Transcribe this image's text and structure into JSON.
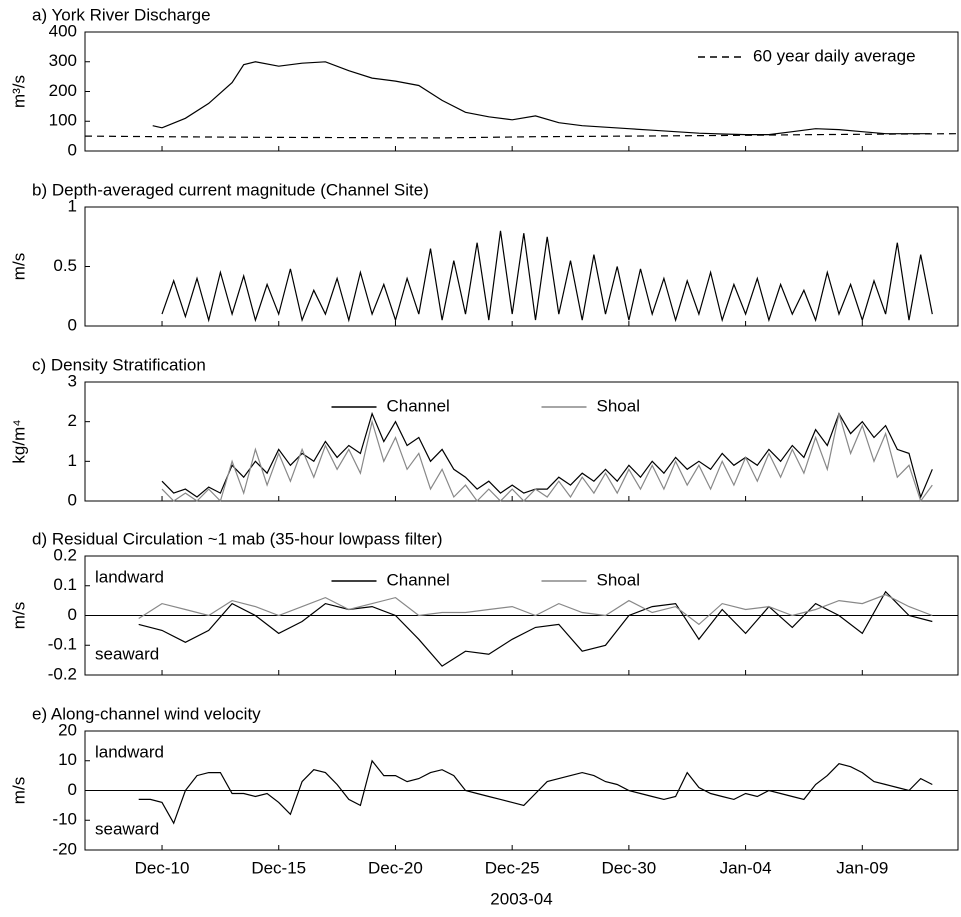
{
  "chart_data": [
    {
      "type": "line",
      "title": "a) York River Discharge",
      "ylabel": "m³/s",
      "xlim": [
        6.7,
        44.1
      ],
      "ylim": [
        0,
        400
      ],
      "yticks": [
        0,
        100,
        200,
        300,
        400
      ],
      "legend": "upper right",
      "series": [
        {
          "name": null,
          "color": "#000000",
          "x": [
            9.6,
            10,
            11,
            12,
            13,
            13.5,
            14,
            15,
            16,
            17,
            18,
            19,
            20,
            21,
            22,
            23,
            24,
            25,
            26,
            27,
            28,
            29,
            30,
            31,
            32,
            33,
            34,
            35,
            36,
            37,
            38,
            39,
            40,
            41,
            42,
            42.9
          ],
          "values": [
            85,
            78,
            110,
            160,
            230,
            290,
            300,
            285,
            295,
            300,
            270,
            245,
            235,
            220,
            170,
            130,
            115,
            105,
            118,
            95,
            85,
            80,
            75,
            70,
            65,
            60,
            57,
            55,
            55,
            65,
            75,
            72,
            65,
            58,
            58,
            58
          ]
        },
        {
          "name": "60 year daily average",
          "color": "#000000",
          "dash": true,
          "x": [
            6.7,
            10,
            14,
            18,
            22,
            26,
            30,
            34,
            38,
            42,
            44.1
          ],
          "values": [
            50,
            48,
            46,
            45,
            44,
            48,
            50,
            52,
            55,
            57,
            58
          ]
        }
      ]
    },
    {
      "type": "line",
      "title": "b) Depth-averaged current magnitude (Channel Site)",
      "ylabel": "m/s",
      "xlim": [
        6.7,
        44.1
      ],
      "ylim": [
        0,
        1
      ],
      "yticks": [
        0,
        0.5,
        1
      ],
      "series": [
        {
          "name": null,
          "color": "#000000",
          "x": [
            10,
            10.5,
            11,
            11.5,
            12,
            12.5,
            13,
            13.5,
            14,
            14.5,
            15,
            15.5,
            16,
            16.5,
            17,
            17.5,
            18,
            18.5,
            19,
            19.5,
            20,
            20.5,
            21,
            21.5,
            22,
            22.5,
            23,
            23.5,
            24,
            24.5,
            25,
            25.5,
            26,
            26.5,
            27,
            27.5,
            28,
            28.5,
            29,
            29.5,
            30,
            30.5,
            31,
            31.5,
            32,
            32.5,
            33,
            33.5,
            34,
            34.5,
            35,
            35.5,
            36,
            36.5,
            37,
            37.5,
            38,
            38.5,
            39,
            39.5,
            40,
            40.5,
            41,
            41.5,
            42,
            42.5,
            43
          ],
          "values": [
            0.1,
            0.38,
            0.08,
            0.4,
            0.05,
            0.45,
            0.1,
            0.42,
            0.05,
            0.35,
            0.1,
            0.48,
            0.05,
            0.3,
            0.1,
            0.4,
            0.05,
            0.45,
            0.1,
            0.35,
            0.05,
            0.4,
            0.1,
            0.65,
            0.05,
            0.55,
            0.1,
            0.7,
            0.05,
            0.8,
            0.1,
            0.78,
            0.05,
            0.75,
            0.1,
            0.55,
            0.05,
            0.6,
            0.1,
            0.5,
            0.05,
            0.48,
            0.1,
            0.4,
            0.05,
            0.38,
            0.1,
            0.45,
            0.05,
            0.35,
            0.1,
            0.4,
            0.05,
            0.35,
            0.1,
            0.3,
            0.05,
            0.45,
            0.1,
            0.35,
            0.05,
            0.38,
            0.1,
            0.7,
            0.05,
            0.6,
            0.1
          ]
        }
      ]
    },
    {
      "type": "line",
      "title": "c) Density Stratification",
      "ylabel": "kg/m⁴",
      "xlim": [
        6.7,
        44.1
      ],
      "ylim": [
        0,
        3
      ],
      "yticks": [
        0,
        1,
        2,
        3
      ],
      "legend": "upper center",
      "series": [
        {
          "name": "Channel",
          "color": "#000000",
          "x": [
            10,
            10.5,
            11,
            11.5,
            12,
            12.5,
            13,
            13.5,
            14,
            14.5,
            15,
            15.5,
            16,
            16.5,
            17,
            17.5,
            18,
            18.5,
            19,
            19.5,
            20,
            20.5,
            21,
            21.5,
            22,
            22.5,
            23,
            23.5,
            24,
            24.5,
            25,
            25.5,
            26,
            26.5,
            27,
            27.5,
            28,
            28.5,
            29,
            29.5,
            30,
            30.5,
            31,
            31.5,
            32,
            32.5,
            33,
            33.5,
            34,
            34.5,
            35,
            35.5,
            36,
            36.5,
            37,
            37.5,
            38,
            38.5,
            39,
            39.5,
            40,
            40.5,
            41,
            41.5,
            42,
            42.5,
            43
          ],
          "values": [
            0.5,
            0.2,
            0.3,
            0.1,
            0.35,
            0.2,
            0.9,
            0.6,
            1.0,
            0.7,
            1.3,
            0.9,
            1.2,
            1.0,
            1.5,
            1.1,
            1.4,
            1.2,
            2.2,
            1.5,
            2.0,
            1.4,
            1.6,
            1.0,
            1.3,
            0.8,
            0.6,
            0.3,
            0.5,
            0.2,
            0.4,
            0.2,
            0.3,
            0.3,
            0.6,
            0.4,
            0.7,
            0.5,
            0.8,
            0.5,
            0.9,
            0.6,
            1.0,
            0.7,
            1.1,
            0.8,
            1.0,
            0.8,
            1.2,
            0.9,
            1.1,
            0.9,
            1.3,
            1.0,
            1.4,
            1.1,
            1.8,
            1.4,
            2.2,
            1.7,
            2.0,
            1.6,
            1.9,
            1.3,
            1.2,
            0.1,
            0.8
          ]
        },
        {
          "name": "Shoal",
          "color": "#888888",
          "x": [
            10,
            10.5,
            11,
            11.5,
            12,
            12.5,
            13,
            13.5,
            14,
            14.5,
            15,
            15.5,
            16,
            16.5,
            17,
            17.5,
            18,
            18.5,
            19,
            19.5,
            20,
            20.5,
            21,
            21.5,
            22,
            22.5,
            23,
            23.5,
            24,
            24.5,
            25,
            25.5,
            26,
            26.5,
            27,
            27.5,
            28,
            28.5,
            29,
            29.5,
            30,
            30.5,
            31,
            31.5,
            32,
            32.5,
            33,
            33.5,
            34,
            34.5,
            35,
            35.5,
            36,
            36.5,
            37,
            37.5,
            38,
            38.5,
            39,
            39.5,
            40,
            40.5,
            41,
            41.5,
            42,
            42.5,
            43
          ],
          "values": [
            0.3,
            0.0,
            0.2,
            0.0,
            0.3,
            0.0,
            1.0,
            0.2,
            1.3,
            0.4,
            1.2,
            0.5,
            1.3,
            0.6,
            1.4,
            0.8,
            1.3,
            0.7,
            2.0,
            1.0,
            1.6,
            0.8,
            1.2,
            0.3,
            0.8,
            0.1,
            0.4,
            0.0,
            0.3,
            0.0,
            0.3,
            0.0,
            0.3,
            0.1,
            0.5,
            0.1,
            0.6,
            0.2,
            0.7,
            0.2,
            0.8,
            0.3,
            0.9,
            0.3,
            1.0,
            0.4,
            0.9,
            0.3,
            1.0,
            0.4,
            1.1,
            0.5,
            1.2,
            0.6,
            1.3,
            0.7,
            1.6,
            0.8,
            2.2,
            1.2,
            1.9,
            1.0,
            1.7,
            0.6,
            0.9,
            0.0,
            0.4
          ]
        }
      ]
    },
    {
      "type": "line",
      "title": "d) Residual Circulation ~1 mab (35-hour lowpass filter)",
      "ylabel": "m/s",
      "xlim": [
        6.7,
        44.1
      ],
      "ylim": [
        -0.2,
        0.2
      ],
      "yticks": [
        -0.2,
        -0.1,
        0,
        0.1,
        0.2
      ],
      "zero_line": true,
      "legend": "upper center",
      "annotations": [
        "landward",
        "seaward"
      ],
      "series": [
        {
          "name": "Channel",
          "color": "#000000",
          "x": [
            9,
            10,
            11,
            12,
            13,
            14,
            15,
            16,
            17,
            18,
            19,
            20,
            21,
            22,
            23,
            24,
            25,
            26,
            27,
            28,
            29,
            30,
            31,
            32,
            33,
            34,
            35,
            36,
            37,
            38,
            39,
            40,
            41,
            42,
            43
          ],
          "values": [
            -0.03,
            -0.05,
            -0.09,
            -0.05,
            0.04,
            0.0,
            -0.06,
            -0.02,
            0.04,
            0.02,
            0.03,
            0.0,
            -0.08,
            -0.17,
            -0.12,
            -0.13,
            -0.08,
            -0.04,
            -0.03,
            -0.12,
            -0.1,
            0.0,
            0.03,
            0.04,
            -0.08,
            0.02,
            -0.06,
            0.03,
            -0.04,
            0.04,
            0.0,
            -0.06,
            0.08,
            0.0,
            -0.02
          ]
        },
        {
          "name": "Shoal",
          "color": "#888888",
          "x": [
            9,
            10,
            11,
            12,
            13,
            14,
            15,
            16,
            17,
            18,
            19,
            20,
            21,
            22,
            23,
            24,
            25,
            26,
            27,
            28,
            29,
            30,
            31,
            32,
            33,
            34,
            35,
            36,
            37,
            38,
            39,
            40,
            41,
            42,
            43
          ],
          "values": [
            -0.01,
            0.04,
            0.02,
            0.0,
            0.05,
            0.03,
            0.0,
            0.03,
            0.06,
            0.02,
            0.04,
            0.06,
            0.0,
            0.01,
            0.01,
            0.02,
            0.03,
            0.0,
            0.04,
            0.01,
            0.0,
            0.05,
            0.01,
            0.03,
            -0.03,
            0.04,
            0.02,
            0.03,
            0.0,
            0.02,
            0.05,
            0.04,
            0.07,
            0.03,
            0.0
          ]
        }
      ]
    },
    {
      "type": "line",
      "title": "e) Along-channel wind velocity",
      "ylabel": "m/s",
      "xlabel": "2003-04",
      "xlim": [
        6.7,
        44.1
      ],
      "ylim": [
        -20,
        20
      ],
      "yticks": [
        -20,
        -10,
        0,
        10,
        20
      ],
      "zero_line": true,
      "annotations": [
        "landward",
        "seaward"
      ],
      "xticks": [
        {
          "value": 10,
          "label": "Dec-10"
        },
        {
          "value": 15,
          "label": "Dec-15"
        },
        {
          "value": 20,
          "label": "Dec-20"
        },
        {
          "value": 25,
          "label": "Dec-25"
        },
        {
          "value": 30,
          "label": "Dec-30"
        },
        {
          "value": 35,
          "label": "Jan-04"
        },
        {
          "value": 40,
          "label": "Jan-09"
        }
      ],
      "series": [
        {
          "name": null,
          "color": "#000000",
          "x": [
            9,
            9.5,
            10,
            10.5,
            11,
            11.5,
            12,
            12.5,
            13,
            13.5,
            14,
            14.5,
            15,
            15.5,
            16,
            16.5,
            17,
            17.5,
            18,
            18.5,
            19,
            19.5,
            20,
            20.5,
            21,
            21.5,
            22,
            22.5,
            23,
            23.5,
            24,
            24.5,
            25,
            25.5,
            26,
            26.5,
            27,
            27.5,
            28,
            28.5,
            29,
            29.5,
            30,
            30.5,
            31,
            31.5,
            32,
            32.5,
            33,
            33.5,
            34,
            34.5,
            35,
            35.5,
            36,
            36.5,
            37,
            37.5,
            38,
            38.5,
            39,
            39.5,
            40,
            40.5,
            41,
            41.5,
            42,
            42.5,
            43
          ],
          "values": [
            -3,
            -3,
            -4,
            -11,
            0,
            5,
            6,
            6,
            -1,
            -1,
            -2,
            -1,
            -4,
            -8,
            3,
            7,
            6,
            2,
            -3,
            -5,
            10,
            5,
            5,
            3,
            4,
            6,
            7,
            5,
            0,
            -1,
            -2,
            -3,
            -4,
            -5,
            -1,
            3,
            4,
            5,
            6,
            5,
            3,
            2,
            0,
            -1,
            -2,
            -3,
            -2,
            6,
            1,
            -1,
            -2,
            -3,
            -1,
            -2,
            0,
            -1,
            -2,
            -3,
            2,
            5,
            9,
            8,
            6,
            3,
            2,
            1,
            0,
            4,
            2
          ]
        }
      ]
    }
  ]
}
